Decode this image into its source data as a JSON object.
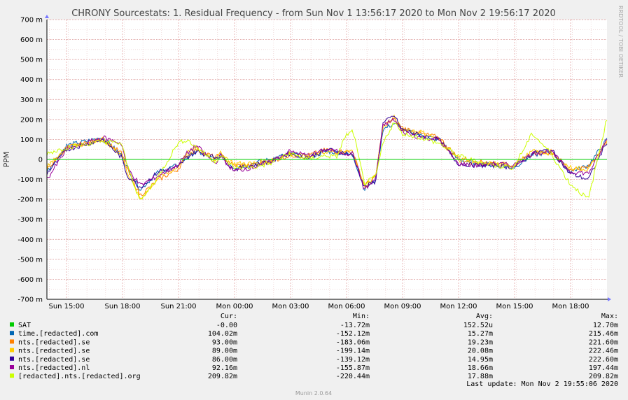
{
  "chart_data": {
    "type": "line",
    "title": "CHRONY Sourcestats: 1. Residual Frequency - from Sun Nov  1 13:56:17 2020 to Mon Nov  2 19:56:17 2020",
    "ylabel": "PPM",
    "side_label": "RRDTOOL / TOBI OETIKER",
    "ylim": [
      -700,
      700
    ],
    "y_ticks": [
      "700 m",
      "600 m",
      "500 m",
      "400 m",
      "300 m",
      "200 m",
      "100 m",
      "0",
      "-100 m",
      "-200 m",
      "-300 m",
      "-400 m",
      "-500 m",
      "-600 m",
      "-700 m"
    ],
    "x_ticks": [
      "Sun 15:00",
      "Sun 18:00",
      "Sun 21:00",
      "Mon 00:00",
      "Mon 03:00",
      "Mon 06:00",
      "Mon 09:00",
      "Mon 12:00",
      "Mon 15:00",
      "Mon 18:00"
    ],
    "x_hours": [
      0,
      1.06,
      3,
      4,
      4.3,
      5,
      6,
      7,
      7.5,
      8,
      9,
      9.3,
      10,
      11,
      12,
      13,
      14,
      15,
      15.5,
      16,
      16.4,
      17,
      17.6,
      18,
      18.6,
      19,
      20,
      21,
      22,
      23,
      24,
      25,
      26,
      27,
      28,
      29,
      30
    ],
    "grid": true,
    "legend_headers": [
      "Cur:",
      "Min:",
      "Avg:",
      "Max:"
    ],
    "series": [
      {
        "name": "SAT",
        "color": "#00cc00",
        "cur": "-0.00",
        "min": "-13.72m",
        "avg": "152.52u",
        "max": "12.70m",
        "values": [
          0,
          0,
          0,
          0,
          0,
          0,
          0,
          0,
          0,
          0,
          0,
          0,
          0,
          0,
          0,
          0,
          0,
          0,
          0,
          0,
          0,
          0,
          0,
          0,
          0,
          0,
          0,
          0,
          0,
          0,
          0,
          0,
          0,
          0,
          0,
          0,
          0
        ]
      },
      {
        "name": "time.[redacted].com",
        "color": "#0066b3",
        "cur": "104.02m",
        "min": "-152.12m",
        "avg": "15.27m",
        "max": "215.46m",
        "values": [
          -60,
          70,
          110,
          20,
          -40,
          -150,
          -60,
          -30,
          10,
          40,
          0,
          20,
          -40,
          -20,
          0,
          30,
          10,
          40,
          35,
          30,
          20,
          -150,
          -100,
          150,
          180,
          150,
          120,
          100,
          0,
          -20,
          -30,
          -40,
          20,
          40,
          -60,
          -30,
          100
        ]
      },
      {
        "name": "nts.[redacted].se",
        "color": "#ff8000",
        "cur": "93.00m",
        "min": "-183.06m",
        "avg": "19.23m",
        "max": "221.60m",
        "values": [
          -50,
          60,
          100,
          30,
          -50,
          -180,
          -100,
          -50,
          20,
          50,
          10,
          20,
          -30,
          -30,
          -10,
          20,
          20,
          50,
          40,
          40,
          30,
          -130,
          -90,
          170,
          200,
          160,
          130,
          110,
          10,
          -10,
          -20,
          -30,
          30,
          40,
          -50,
          -40,
          90
        ]
      },
      {
        "name": "nts.[redacted].se",
        "color": "#ffcc00",
        "cur": "89.00m",
        "min": "-199.14m",
        "avg": "20.08m",
        "max": "222.46m",
        "values": [
          -40,
          60,
          100,
          20,
          -60,
          -200,
          -90,
          -40,
          30,
          60,
          0,
          30,
          -20,
          -20,
          0,
          30,
          10,
          40,
          30,
          40,
          40,
          -140,
          -80,
          160,
          210,
          150,
          140,
          100,
          0,
          -20,
          -20,
          -30,
          40,
          30,
          -40,
          -50,
          90
        ]
      },
      {
        "name": "nts.[redacted].se",
        "color": "#330099",
        "cur": "86.00m",
        "min": "-139.12m",
        "avg": "14.95m",
        "max": "222.60m",
        "values": [
          -70,
          50,
          100,
          10,
          -80,
          -140,
          -60,
          -40,
          10,
          40,
          10,
          20,
          -50,
          -30,
          -10,
          30,
          10,
          50,
          40,
          30,
          20,
          -140,
          -110,
          180,
          220,
          150,
          120,
          100,
          -20,
          -30,
          -30,
          -40,
          30,
          50,
          -70,
          -100,
          90
        ]
      },
      {
        "name": "nts.[redacted].nl",
        "color": "#990099",
        "cur": "92.16m",
        "min": "-155.87m",
        "avg": "18.66m",
        "max": "197.44m",
        "values": [
          -100,
          50,
          110,
          80,
          -40,
          -130,
          -80,
          -30,
          30,
          70,
          -20,
          20,
          -60,
          -40,
          -10,
          40,
          20,
          50,
          40,
          30,
          30,
          -150,
          -100,
          170,
          200,
          140,
          110,
          100,
          -20,
          -30,
          -20,
          -30,
          30,
          40,
          -60,
          -70,
          100
        ]
      },
      {
        "name": "[redacted].nts.[redacted].org",
        "color": "#ccff00",
        "cur": "209.82m",
        "min": "-220.44m",
        "avg": "17.88m",
        "max": "209.82m",
        "values": [
          30,
          60,
          90,
          80,
          -30,
          -210,
          -80,
          80,
          100,
          60,
          -10,
          20,
          -40,
          -40,
          -20,
          30,
          0,
          20,
          10,
          120,
          140,
          -120,
          -90,
          80,
          190,
          130,
          110,
          80,
          20,
          -10,
          -30,
          -40,
          130,
          30,
          -120,
          -200,
          210
        ]
      }
    ]
  },
  "last_update": "Last update: Mon Nov  2 19:55:06 2020",
  "footer": "Munin 2.0.64"
}
